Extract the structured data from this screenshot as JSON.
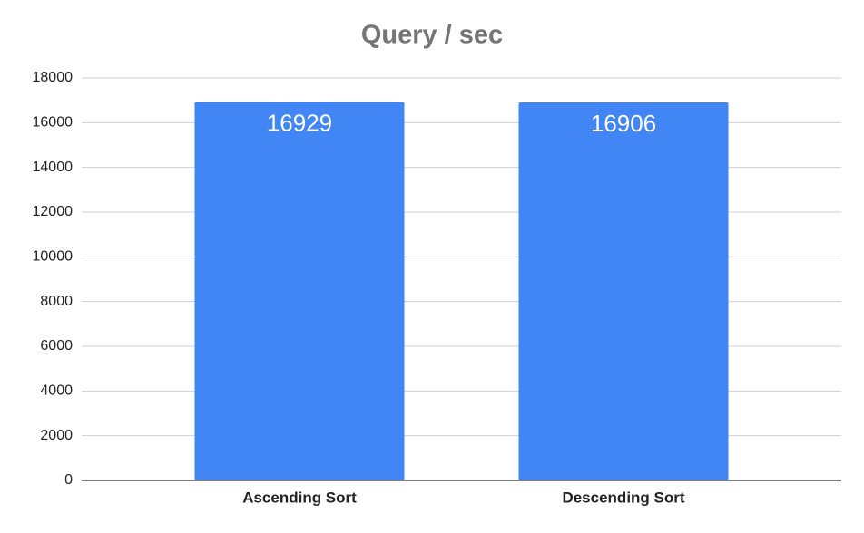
{
  "chart_data": {
    "type": "bar",
    "title": "Query / sec",
    "categories": [
      "Ascending Sort",
      "Descending Sort"
    ],
    "values": [
      16929,
      16906
    ],
    "color": "#4285f4",
    "ylim": [
      0,
      18000
    ],
    "yticks": [
      0,
      2000,
      4000,
      6000,
      8000,
      10000,
      12000,
      14000,
      16000,
      18000
    ],
    "grid": true
  }
}
